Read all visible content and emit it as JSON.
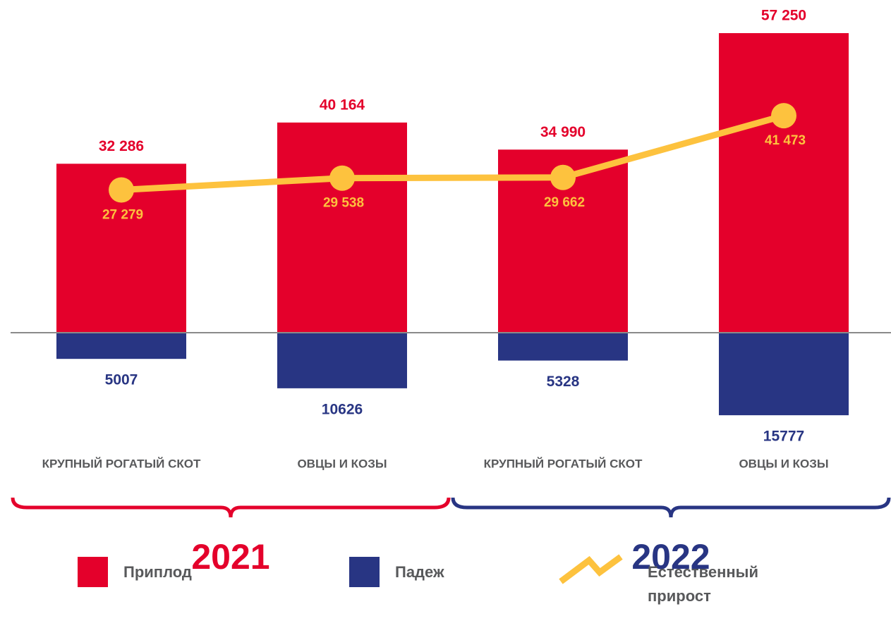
{
  "chart_data": {
    "type": "bar",
    "categories": [
      "КРУПНЫЙ РОГАТЫЙ СКОТ",
      "ОВЦЫ И КОЗЫ",
      "КРУПНЫЙ РОГАТЫЙ СКОТ",
      "ОВЦЫ И КОЗЫ"
    ],
    "groups": [
      {
        "name": "2021",
        "color": "#e4002b"
      },
      {
        "name": "2022",
        "color": "#283583"
      }
    ],
    "series": [
      {
        "name": "Приплод",
        "type": "bar",
        "color": "#e4002b",
        "values": [
          32286,
          40164,
          34990,
          57250
        ],
        "value_labels": [
          "32 286",
          "40 164",
          "34 990",
          "57 250"
        ]
      },
      {
        "name": "Падеж",
        "type": "bar",
        "color": "#283583",
        "values": [
          -5007,
          -10626,
          -5328,
          -15777
        ],
        "value_labels": [
          "5007",
          "10626",
          "5328",
          "15777"
        ]
      },
      {
        "name": "Естественный прирост",
        "type": "line",
        "color": "#fdc23e",
        "values": [
          27279,
          29538,
          29662,
          41473
        ],
        "value_labels": [
          "27 279",
          "29 538",
          "29 662",
          "41 473"
        ]
      }
    ]
  }
}
